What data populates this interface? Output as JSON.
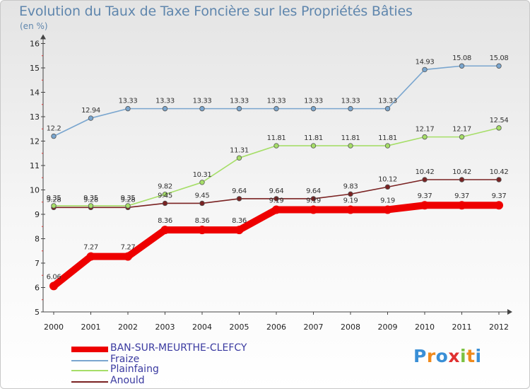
{
  "title": "Evolution du Taux de Taxe Foncière sur les Propriétés Bâties",
  "unit": "(en %)",
  "logo": {
    "letters": [
      "P",
      "r",
      "o",
      "x",
      "i",
      "t",
      "i"
    ],
    "colors": [
      "#3a8fd6",
      "#f08a1c",
      "#3a8fd6",
      "#e03030",
      "#7cc242",
      "#f08a1c",
      "#3a8fd6"
    ]
  },
  "chart_data": {
    "type": "line",
    "title": "Evolution du Taux de Taxe Foncière sur les Propriétés Bâties",
    "ylabel": "(en %)",
    "xlabel": "",
    "ylim": [
      5,
      16
    ],
    "yticks": [
      "5",
      "6",
      "7",
      "8",
      "9",
      "10",
      "11",
      "12",
      "13",
      "14",
      "15",
      "16"
    ],
    "categories": [
      "2000",
      "2001",
      "2002",
      "2003",
      "2004",
      "2005",
      "2006",
      "2007",
      "2008",
      "2009",
      "2010",
      "2011",
      "2012"
    ],
    "grid": false,
    "series": [
      {
        "name": "Anould",
        "color": "#7a2222",
        "values": [
          9.28,
          9.28,
          9.28,
          9.45,
          9.45,
          9.64,
          9.64,
          9.64,
          9.83,
          10.12,
          10.42,
          10.42,
          10.42
        ],
        "labels": [
          "9.28",
          "9.28",
          "9.28",
          "9.45",
          "9.45",
          "9.64",
          "9.64",
          "9.64",
          "9.83",
          "10.12",
          "10.42",
          "10.42",
          "10.42"
        ]
      },
      {
        "name": "Plainfaing",
        "color": "#a6de68",
        "values": [
          9.35,
          9.35,
          9.35,
          9.82,
          10.31,
          11.31,
          11.81,
          11.81,
          11.81,
          11.81,
          12.17,
          12.17,
          12.54
        ],
        "labels": [
          "9.35",
          "9.35",
          "9.35",
          "9.82",
          "10.31",
          "11.31",
          "11.81",
          "11.81",
          "11.81",
          "11.81",
          "12.17",
          "12.17",
          "12.54"
        ]
      },
      {
        "name": "Fraize",
        "color": "#7aa6cf",
        "values": [
          12.2,
          12.94,
          13.33,
          13.33,
          13.33,
          13.33,
          13.33,
          13.33,
          13.33,
          13.33,
          14.93,
          15.08,
          15.08
        ],
        "labels": [
          "12.2",
          "12.94",
          "13.33",
          "13.33",
          "13.33",
          "13.33",
          "13.33",
          "13.33",
          "13.33",
          "13.33",
          "14.93",
          "15.08",
          "15.08"
        ]
      },
      {
        "name": "BAN-SUR-MEURTHE-CLEFCY",
        "color": "#ee0000",
        "values": [
          6.06,
          7.27,
          7.27,
          8.36,
          8.36,
          8.36,
          9.19,
          9.19,
          9.19,
          9.19,
          9.37,
          9.37,
          9.37
        ],
        "labels": [
          "6.06",
          "7.27",
          "7.27",
          "8.36",
          "8.36",
          "8.36",
          "9.19",
          "9.19",
          "9.19",
          "9.19",
          "9.37",
          "9.37",
          "9.37"
        ]
      }
    ],
    "legend_order": [
      "BAN-SUR-MEURTHE-CLEFCY",
      "Fraize",
      "Plainfaing",
      "Anould"
    ]
  }
}
